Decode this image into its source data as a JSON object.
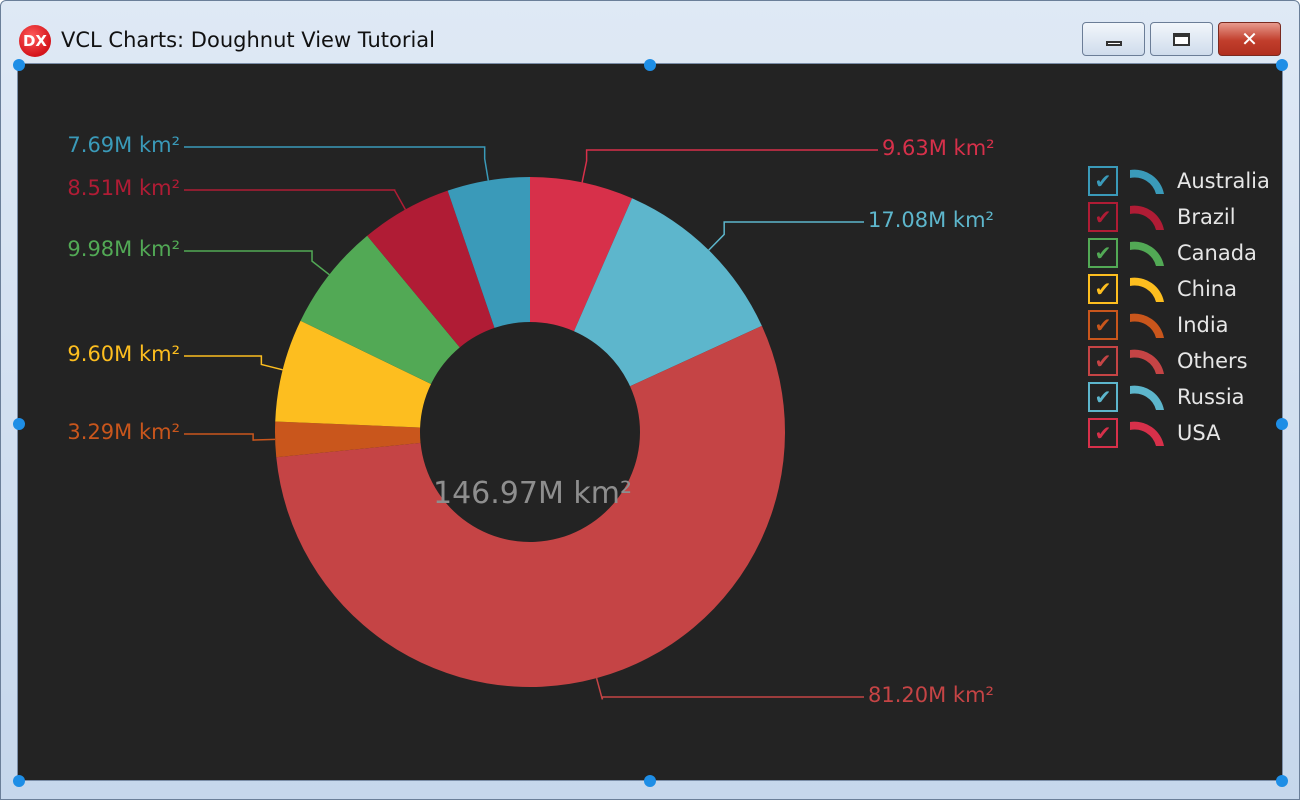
{
  "window": {
    "title": "VCL Charts: Doughnut View Tutorial",
    "app_icon_text": "DX",
    "minimize_icon": "minimize-icon",
    "maximize_icon": "maximize-icon",
    "close_icon": "close-icon",
    "close_glyph": "✕"
  },
  "colors": {
    "Australia": "#3a9ab9",
    "Brazil": "#b01c35",
    "Canada": "#52a955",
    "China": "#fdbe1f",
    "India": "#c9561c",
    "Others": "#c54445",
    "Russia": "#5db6cc",
    "USA": "#d7304a",
    "background": "#232323"
  },
  "chart_data": {
    "type": "pie",
    "style": "doughnut",
    "total_label": "146.97M km²",
    "unit": "M km²",
    "slices": [
      {
        "name": "USA",
        "value": 9.63,
        "label": "9.63M km²"
      },
      {
        "name": "Russia",
        "value": 17.08,
        "label": "17.08M km²"
      },
      {
        "name": "Others",
        "value": 81.2,
        "label": "81.20M km²"
      },
      {
        "name": "India",
        "value": 3.29,
        "label": "3.29M km²"
      },
      {
        "name": "China",
        "value": 9.6,
        "label": "9.60M km²"
      },
      {
        "name": "Canada",
        "value": 9.98,
        "label": "9.98M km²"
      },
      {
        "name": "Brazil",
        "value": 8.51,
        "label": "8.51M km²"
      },
      {
        "name": "Australia",
        "value": 7.69,
        "label": "7.69M km²"
      }
    ],
    "legend": {
      "placement": "top-right",
      "items": [
        {
          "name": "Australia",
          "checked": true
        },
        {
          "name": "Brazil",
          "checked": true
        },
        {
          "name": "Canada",
          "checked": true
        },
        {
          "name": "China",
          "checked": true
        },
        {
          "name": "India",
          "checked": true
        },
        {
          "name": "Others",
          "checked": true
        },
        {
          "name": "Russia",
          "checked": true
        },
        {
          "name": "USA",
          "checked": true
        }
      ],
      "check_glyph": "✔"
    }
  }
}
